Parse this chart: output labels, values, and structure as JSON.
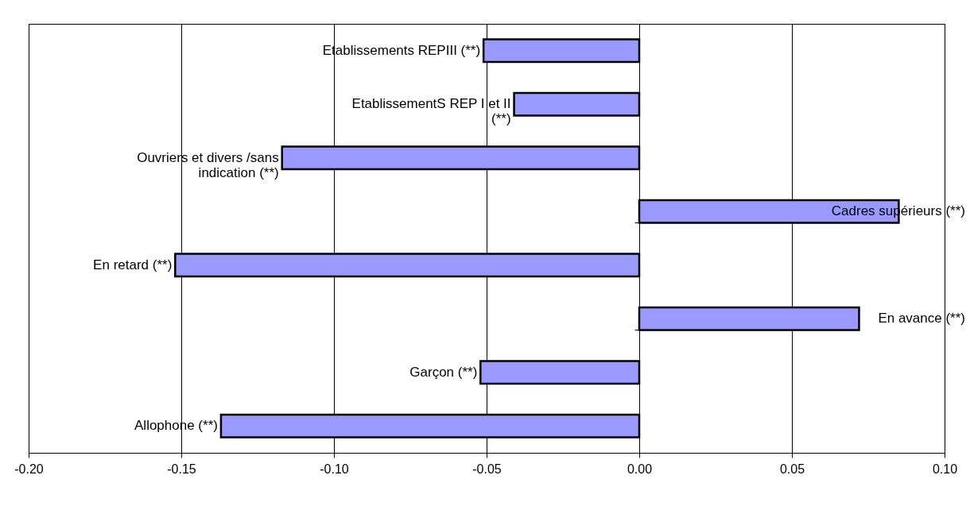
{
  "chart_data": {
    "type": "bar",
    "orientation": "horizontal",
    "categories": [
      "Etablissements REPIII (**)",
      "EtablissementS REP I et II\n(**)",
      "Ouvriers et divers /sans\nindication (**)",
      "Cadres supérieurs (**)",
      "En retard (**)",
      "En avance (**)",
      "Garçon (**)",
      "Allophone (**)"
    ],
    "values": [
      -0.051,
      -0.041,
      -0.117,
      0.085,
      -0.152,
      0.072,
      -0.052,
      -0.137
    ],
    "color": "#9999ff",
    "xlim": [
      -0.2,
      0.1
    ],
    "xticks": [
      {
        "value": -0.2,
        "label": "-0.20"
      },
      {
        "value": -0.15,
        "label": "-0.15"
      },
      {
        "value": -0.1,
        "label": "-0.10"
      },
      {
        "value": -0.05,
        "label": "-0.05"
      },
      {
        "value": 0,
        "label": "0.00"
      },
      {
        "value": 0.05,
        "label": "0.05"
      },
      {
        "value": 0.1,
        "label": "0.10"
      }
    ],
    "grid": "x",
    "tick_labels": "x"
  }
}
